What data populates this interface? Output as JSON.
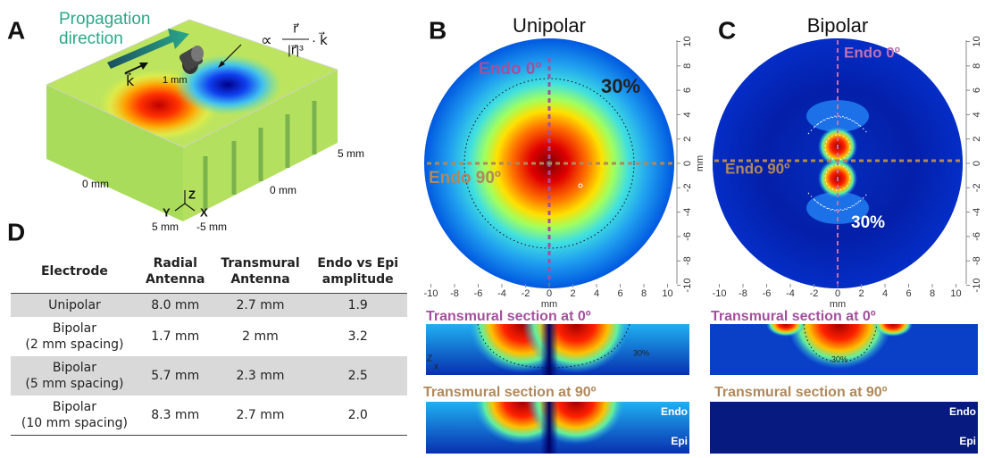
{
  "panel_a": {
    "label": "A",
    "propagation": [
      "Propagation",
      "direction"
    ],
    "k_label": "k⃗",
    "formula": {
      "proportional": "∝",
      "numerator": "r⃗",
      "denominator": "|r⃗|³",
      "tail": "· k⃗"
    },
    "electrode_size": "1 mm",
    "axis_labels": {
      "right_far": "5 mm",
      "left_zero": "0 mm",
      "right_zero": "0 mm",
      "front_left": "5 mm",
      "front_right": "-5 mm",
      "z": "Z",
      "y": "Y",
      "x": "X"
    }
  },
  "panel_b": {
    "label": "B",
    "title": "Unipolar",
    "endo_0": "Endo 0º",
    "endo_90": "Endo 90º",
    "contour": "30%",
    "xticks": [
      -10,
      -8,
      -6,
      -4,
      -2,
      0,
      2,
      4,
      6,
      8,
      10
    ],
    "yticks": [
      10,
      8,
      6,
      4,
      2,
      0,
      -2,
      -4,
      -6,
      -8,
      -10
    ],
    "x_unit": "mm",
    "y_unit": "mm",
    "section_0": {
      "title": "Transmural section at 0º",
      "contour": "30%",
      "z": "Z",
      "x": "x"
    },
    "section_90": {
      "title": "Transmural section at 90º",
      "endo": "Endo",
      "epi": "Epi"
    }
  },
  "panel_c": {
    "label": "C",
    "title": "Bipolar",
    "endo_0": "Endo 0º",
    "endo_90": "Endo 90º",
    "contour": "30%",
    "xticks": [
      -10,
      -8,
      -6,
      -4,
      -2,
      0,
      2,
      4,
      6,
      8,
      10
    ],
    "yticks": [
      10,
      8,
      6,
      4,
      2,
      0,
      -2,
      -4,
      -6,
      -8,
      -10
    ],
    "x_unit": "mm",
    "y_unit": "mm",
    "section_0": {
      "title": "Transmural section at 0º",
      "contour": "30%"
    },
    "section_90": {
      "title": "Transmural section at 90º",
      "endo": "Endo",
      "epi": "Epi"
    }
  },
  "panel_d": {
    "label": "D",
    "table": {
      "header": [
        "Electrode",
        "Radial\nAntenna",
        "Transmural\nAntenna",
        "Endo vs Epi\namplitude"
      ],
      "rows": [
        [
          "Unipolar",
          "8.0 mm",
          "2.7 mm",
          "1.9"
        ],
        [
          "Bipolar\n(2 mm spacing)",
          "1.7 mm",
          "2 mm",
          "3.2"
        ],
        [
          "Bipolar\n(5 mm spacing)",
          "5.7 mm",
          "2.3 mm",
          "2.5"
        ],
        [
          "Bipolar\n(10 mm spacing)",
          "8.3 mm",
          "2.7 mm",
          "2.0"
        ]
      ]
    }
  }
}
